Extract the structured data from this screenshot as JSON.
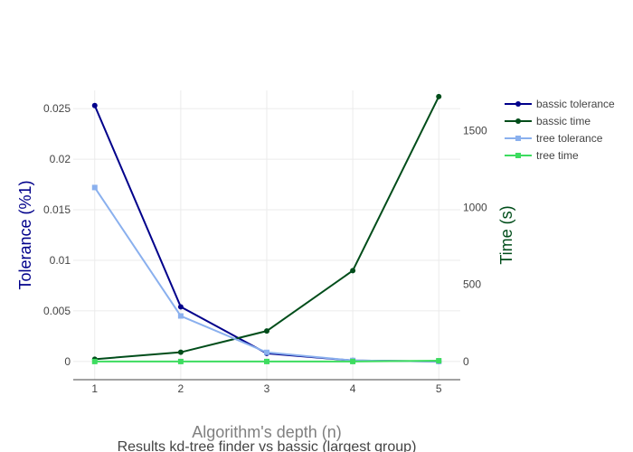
{
  "chart_data": {
    "type": "line",
    "title": "Results kd-tree finder vs bassic (largest group)",
    "xlabel": "Algorithm's depth (n)",
    "ylabel": "Tolerance (%1)",
    "y2label": "Time (s)",
    "x": [
      1,
      2,
      3,
      4,
      5
    ],
    "x_ticks": [
      "1",
      "2",
      "3",
      "4",
      "5"
    ],
    "y_ticks": [
      "0",
      "0.005",
      "0.01",
      "0.015",
      "0.02",
      "0.025"
    ],
    "y2_ticks": [
      "0",
      "500",
      "1000",
      "1500"
    ],
    "ylim": [
      -0.0018,
      0.0268
    ],
    "y2lim": [
      -118,
      1760
    ],
    "grid": true,
    "legend_position": "top-right",
    "colors": {
      "y_axis_title": "#00008b",
      "y2_axis_title": "#004d1a",
      "x_axis_title": "#808080",
      "title": "#444444"
    },
    "series": [
      {
        "name": "bassic tolerance",
        "axis": "y",
        "marker": "circle",
        "color": "#00008b",
        "values": [
          0.0253,
          0.0054,
          0.0008,
          0.0001,
          0.0
        ]
      },
      {
        "name": "bassic time",
        "axis": "y2",
        "marker": "circle",
        "color": "#004d1a",
        "values": [
          15,
          60,
          198,
          590,
          1720
        ]
      },
      {
        "name": "tree tolerance",
        "axis": "y",
        "marker": "square",
        "color": "#8ab0ee",
        "values": [
          0.0172,
          0.0045,
          0.0009,
          0.0001,
          0.0
        ]
      },
      {
        "name": "tree time",
        "axis": "y2",
        "marker": "square",
        "color": "#3ddc5f",
        "values": [
          0,
          0,
          0,
          0,
          5
        ]
      }
    ]
  }
}
